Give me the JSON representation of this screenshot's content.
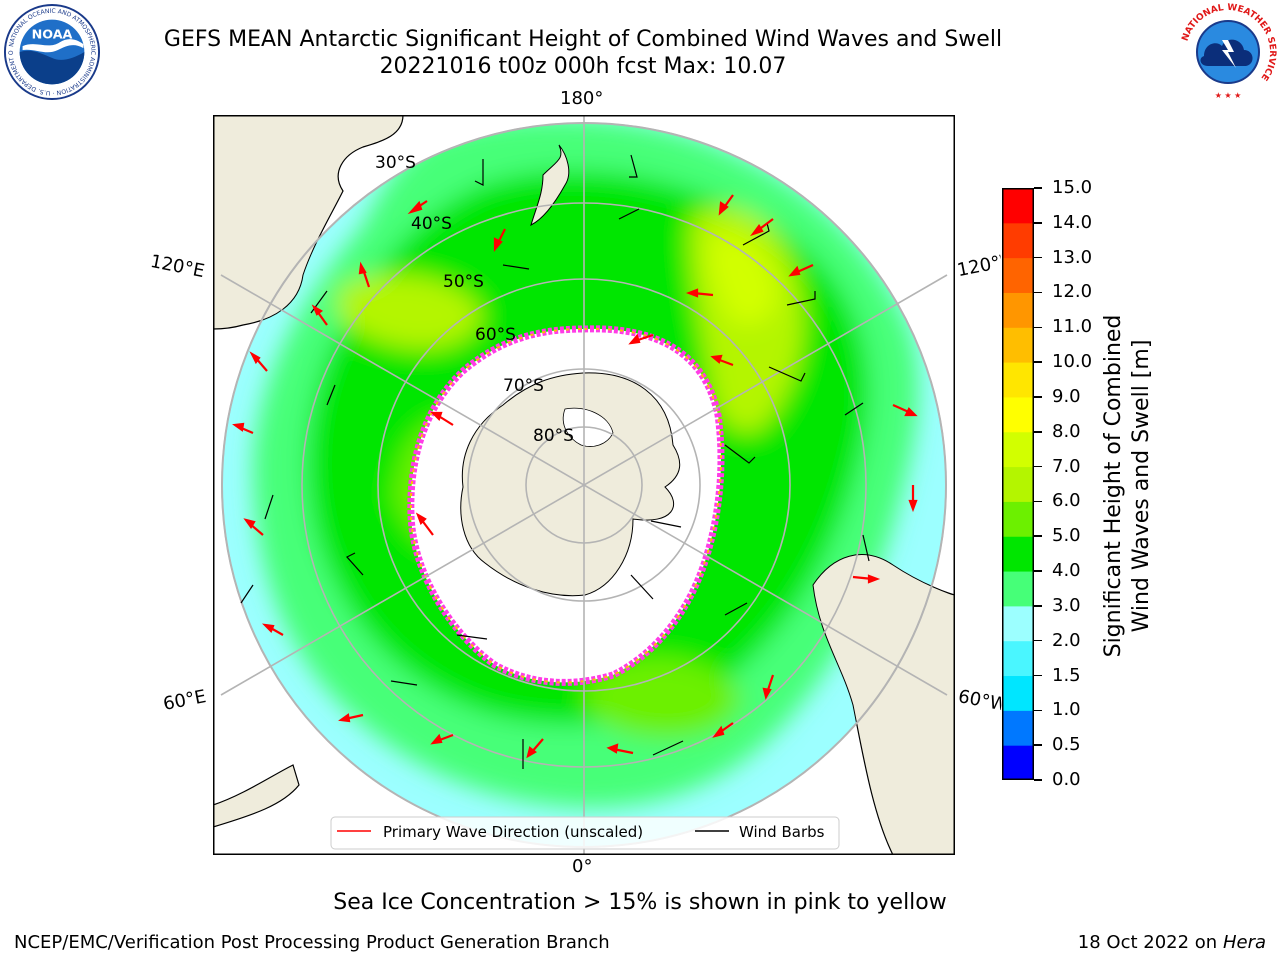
{
  "header": {
    "title": "GEFS MEAN Antarctic Significant Height of Combined Wind Waves and Swell",
    "subtitle": "20221016 t00z 000h fcst   Max: 10.07"
  },
  "logos": {
    "noaa": {
      "text": "NOAA",
      "ring_text": "NATIONAL OCEANIC AND ATMOSPHERIC ADMINISTRATION · U.S. DEPARTMENT OF COMMERCE"
    },
    "nws": {
      "ring_text": "NATIONAL WEATHER SERVICE"
    }
  },
  "map": {
    "projection": "south-polar-stereographic",
    "lon_labels": {
      "top": "180°",
      "bottom": "0°",
      "left_upper": "120°E",
      "left_lower": "60°E",
      "right_upper": "120°W",
      "right_lower": "60°W"
    },
    "lat_labels": [
      "30°S",
      "40°S",
      "50°S",
      "60°S",
      "70°S",
      "80°S"
    ],
    "legend": {
      "wave": "Primary Wave Direction (unscaled)",
      "barbs": "Wind Barbs"
    },
    "colors": {
      "land": "#efecdc",
      "ice": "#ff3ce6",
      "wave_arrow": "#ff0000",
      "barb": "#000000",
      "grid": "#b4b4b4"
    }
  },
  "colorbar": {
    "label_line1": "Significant Height of Combined",
    "label_line2": "Wind Waves and Swell [m]",
    "ticks": [
      "15.0",
      "14.0",
      "13.0",
      "12.0",
      "11.0",
      "10.0",
      "9.0",
      "8.0",
      "7.0",
      "6.0",
      "5.0",
      "4.0",
      "3.0",
      "2.0",
      "1.5",
      "1.0",
      "0.5",
      "0.0"
    ],
    "colors_bottom_up": [
      "#0000ff",
      "#0078ff",
      "#00e6ff",
      "#4af6ff",
      "#9cffff",
      "#46ff78",
      "#00e600",
      "#6cf000",
      "#b4f500",
      "#d2ff00",
      "#ffff00",
      "#ffe600",
      "#ffbe00",
      "#ff9600",
      "#ff6400",
      "#ff3c00",
      "#ff0000"
    ]
  },
  "footer": {
    "sea_ice_note": "Sea Ice Concentration > 15% is shown in pink to yellow",
    "credit_left": "NCEP/EMC/Verification Post Processing Product Generation Branch",
    "date": "18 Oct 2022 on",
    "machine": "Hera"
  }
}
